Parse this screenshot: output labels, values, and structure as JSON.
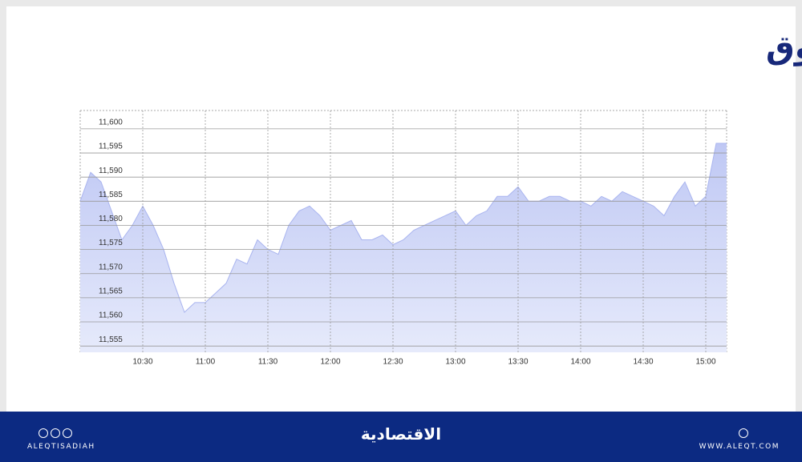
{
  "chart_data": {
    "type": "area",
    "title": "مؤشر السوق",
    "color": "#a9b4ef",
    "x": [
      "10:00",
      "10:05",
      "10:10",
      "10:15",
      "10:20",
      "10:25",
      "10:30",
      "10:35",
      "10:40",
      "10:45",
      "10:50",
      "10:55",
      "11:00",
      "11:05",
      "11:10",
      "11:15",
      "11:20",
      "11:25",
      "11:30",
      "11:35",
      "11:40",
      "11:45",
      "11:50",
      "11:55",
      "12:00",
      "12:05",
      "12:10",
      "12:15",
      "12:20",
      "12:25",
      "12:30",
      "12:35",
      "12:40",
      "12:45",
      "12:50",
      "12:55",
      "13:00",
      "13:05",
      "13:10",
      "13:15",
      "13:20",
      "13:25",
      "13:30",
      "13:35",
      "13:40",
      "13:45",
      "13:50",
      "13:55",
      "14:00",
      "14:05",
      "14:10",
      "14:15",
      "14:20",
      "14:25",
      "14:30",
      "14:35",
      "14:40",
      "14:45",
      "14:50",
      "14:55",
      "15:00",
      "15:05",
      "15:10"
    ],
    "values": [
      11585,
      11591,
      11589,
      11583,
      11577,
      11580,
      11584,
      11580,
      11575,
      11568,
      11562,
      11564,
      11564,
      11566,
      11568,
      11573,
      11572,
      11577,
      11575,
      11574,
      11580,
      11583,
      11584,
      11582,
      11579,
      11580,
      11581,
      11577,
      11577,
      11578,
      11576,
      11577,
      11579,
      11580,
      11581,
      11582,
      11583,
      11580,
      11582,
      11583,
      11586,
      11586,
      11588,
      11585,
      11585,
      11586,
      11586,
      11585,
      11585,
      11584,
      11586,
      11585,
      11587,
      11586,
      11585,
      11584,
      11582,
      11586,
      11589,
      11584,
      11586,
      11597,
      11597
    ],
    "xlim": [
      "10:00",
      "15:10"
    ],
    "xticks": [
      "10:30",
      "11:00",
      "11:30",
      "12:00",
      "12:30",
      "13:00",
      "13:30",
      "14:00",
      "14:30",
      "15:00"
    ],
    "ylim": [
      11553.7,
      11603.8
    ],
    "yticks": [
      {
        "value": 11555,
        "label": "11,555"
      },
      {
        "value": 11560,
        "label": "11,560"
      },
      {
        "value": 11565,
        "label": "11,565"
      },
      {
        "value": 11570,
        "label": "11,570"
      },
      {
        "value": 11575,
        "label": "11,575"
      },
      {
        "value": 11580,
        "label": "11,580"
      },
      {
        "value": 11585,
        "label": "11,585"
      },
      {
        "value": 11590,
        "label": "11,590"
      },
      {
        "value": 11595,
        "label": "11,595"
      },
      {
        "value": 11600,
        "label": "11,600"
      }
    ],
    "grid": true
  },
  "footer": {
    "handle": "ALEQTISADIAH",
    "brand": "الاقتصادية",
    "website": "WWW.ALEQT.COM"
  }
}
